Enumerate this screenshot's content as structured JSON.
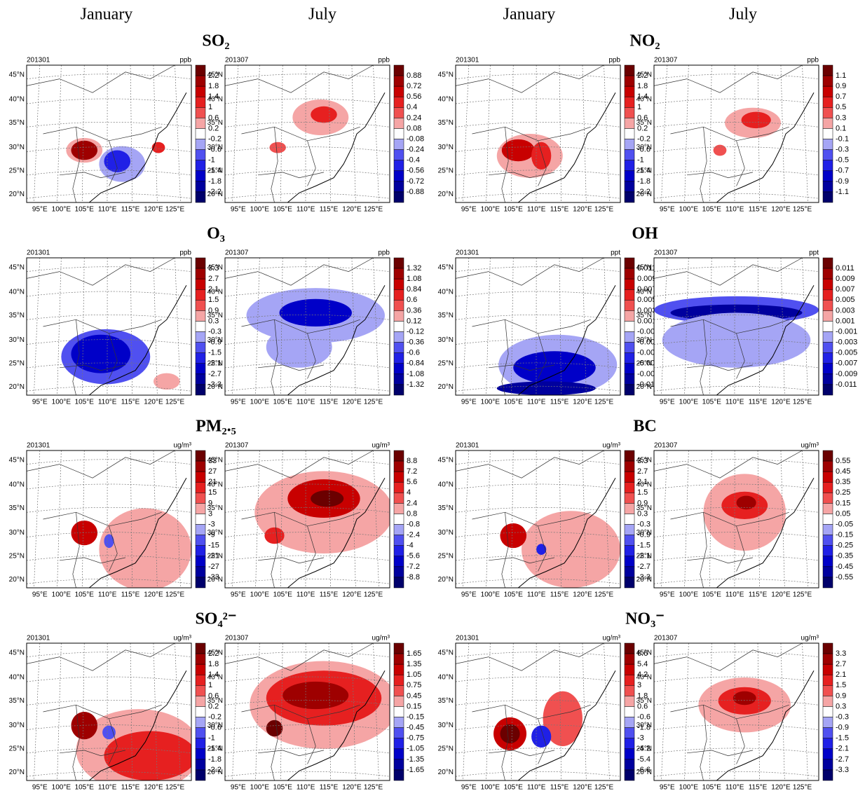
{
  "columns": [
    "January",
    "July",
    "January",
    "July"
  ],
  "lat_labels": [
    "45°N",
    "40°N",
    "35°N",
    "30°N",
    "25°N",
    "20°N"
  ],
  "lon_labels": [
    "95°E",
    "100°E",
    "105°E",
    "110°E",
    "115°E",
    "120°E",
    "125°E"
  ],
  "groups": [
    {
      "title": "SO₂",
      "maps": [
        {
          "date": "201301",
          "unit": "ppb",
          "levels": [
            "2.2",
            "1.8",
            "1.4",
            "1",
            "0.6",
            "0.2",
            "-0.2",
            "-0.6",
            "-1",
            "-1.4",
            "-1.8",
            "-2.2"
          ]
        },
        {
          "date": "201307",
          "unit": "ppb",
          "levels": [
            "0.88",
            "0.72",
            "0.56",
            "0.4",
            "0.24",
            "0.08",
            "-0.08",
            "-0.24",
            "-0.4",
            "-0.56",
            "-0.72",
            "-0.88"
          ]
        }
      ]
    },
    {
      "title": "NO₂",
      "maps": [
        {
          "date": "201301",
          "unit": "ppb",
          "levels": [
            "2.2",
            "1.8",
            "1.4",
            "1",
            "0.6",
            "0.2",
            "-0.2",
            "-0.6",
            "-1",
            "-1.4",
            "-1.8",
            "-2.2"
          ]
        },
        {
          "date": "201307",
          "unit": "ppb",
          "levels": [
            "1.1",
            "0.9",
            "0.7",
            "0.5",
            "0.3",
            "0.1",
            "-0.1",
            "-0.3",
            "-0.5",
            "-0.7",
            "-0.9",
            "-1.1"
          ]
        }
      ]
    },
    {
      "title": "O₃",
      "maps": [
        {
          "date": "201301",
          "unit": "ppb",
          "levels": [
            "3.3",
            "2.7",
            "2.1",
            "1.5",
            "0.9",
            "0.3",
            "-0.3",
            "-0.9",
            "-1.5",
            "-2.1",
            "-2.7",
            "-3.3"
          ]
        },
        {
          "date": "201307",
          "unit": "ppb",
          "levels": [
            "1.32",
            "1.08",
            "0.84",
            "0.6",
            "0.36",
            "0.12",
            "-0.12",
            "-0.36",
            "-0.6",
            "-0.84",
            "-1.08",
            "-1.32"
          ]
        }
      ]
    },
    {
      "title": "OH",
      "maps": [
        {
          "date": "201301",
          "unit": "ppt",
          "levels": [
            "0.011",
            "0.009",
            "0.007",
            "0.005",
            "0.003",
            "0.001",
            "-0.001",
            "-0.003",
            "-0.005",
            "-0.007",
            "-0.009",
            "-0.011"
          ]
        },
        {
          "date": "201307",
          "unit": "ppt",
          "levels": [
            "0.011",
            "0.009",
            "0.007",
            "0.005",
            "0.003",
            "0.001",
            "-0.001",
            "-0.003",
            "-0.005",
            "-0.007",
            "-0.009",
            "-0.011"
          ]
        }
      ]
    },
    {
      "title": "PM₂.₅",
      "maps": [
        {
          "date": "201301",
          "unit": "ug/m³",
          "levels": [
            "33",
            "27",
            "21",
            "15",
            "9",
            "3",
            "-3",
            "-9",
            "-15",
            "-21",
            "-27",
            "-33"
          ]
        },
        {
          "date": "201307",
          "unit": "ug/m³",
          "levels": [
            "8.8",
            "7.2",
            "5.6",
            "4",
            "2.4",
            "0.8",
            "-0.8",
            "-2.4",
            "-4",
            "-5.6",
            "-7.2",
            "-8.8"
          ]
        }
      ]
    },
    {
      "title": "BC",
      "maps": [
        {
          "date": "201301",
          "unit": "ug/m³",
          "levels": [
            "3.3",
            "2.7",
            "2.1",
            "1.5",
            "0.9",
            "0.3",
            "-0.3",
            "-0.9",
            "-1.5",
            "-2.1",
            "-2.7",
            "-3.3"
          ]
        },
        {
          "date": "201307",
          "unit": "ug/m³",
          "levels": [
            "0.55",
            "0.45",
            "0.35",
            "0.25",
            "0.15",
            "0.05",
            "-0.05",
            "-0.15",
            "-0.25",
            "-0.35",
            "-0.45",
            "-0.55"
          ]
        }
      ]
    },
    {
      "title": "SO₄²⁻",
      "maps": [
        {
          "date": "201301",
          "unit": "ug/m³",
          "levels": [
            "2.2",
            "1.8",
            "1.4",
            "1",
            "0.6",
            "0.2",
            "-0.2",
            "-0.6",
            "-1",
            "-1.4",
            "-1.8",
            "-2.2"
          ]
        },
        {
          "date": "201307",
          "unit": "ug/m³",
          "levels": [
            "1.65",
            "1.35",
            "1.05",
            "0.75",
            "0.45",
            "0.15",
            "-0.15",
            "-0.45",
            "-0.75",
            "-1.05",
            "-1.35",
            "-1.65"
          ]
        }
      ]
    },
    {
      "title": "NO₃⁻",
      "maps": [
        {
          "date": "201301",
          "unit": "ug/m³",
          "levels": [
            "6.6",
            "5.4",
            "4.2",
            "3",
            "1.8",
            "0.6",
            "-0.6",
            "-1.8",
            "-3",
            "-4.2",
            "-5.4",
            "-6.6"
          ]
        },
        {
          "date": "201307",
          "unit": "ug/m³",
          "levels": [
            "3.3",
            "2.7",
            "2.1",
            "1.5",
            "0.9",
            "0.3",
            "-0.3",
            "-0.9",
            "-1.5",
            "-2.1",
            "-2.7",
            "-3.3"
          ]
        }
      ]
    }
  ]
}
